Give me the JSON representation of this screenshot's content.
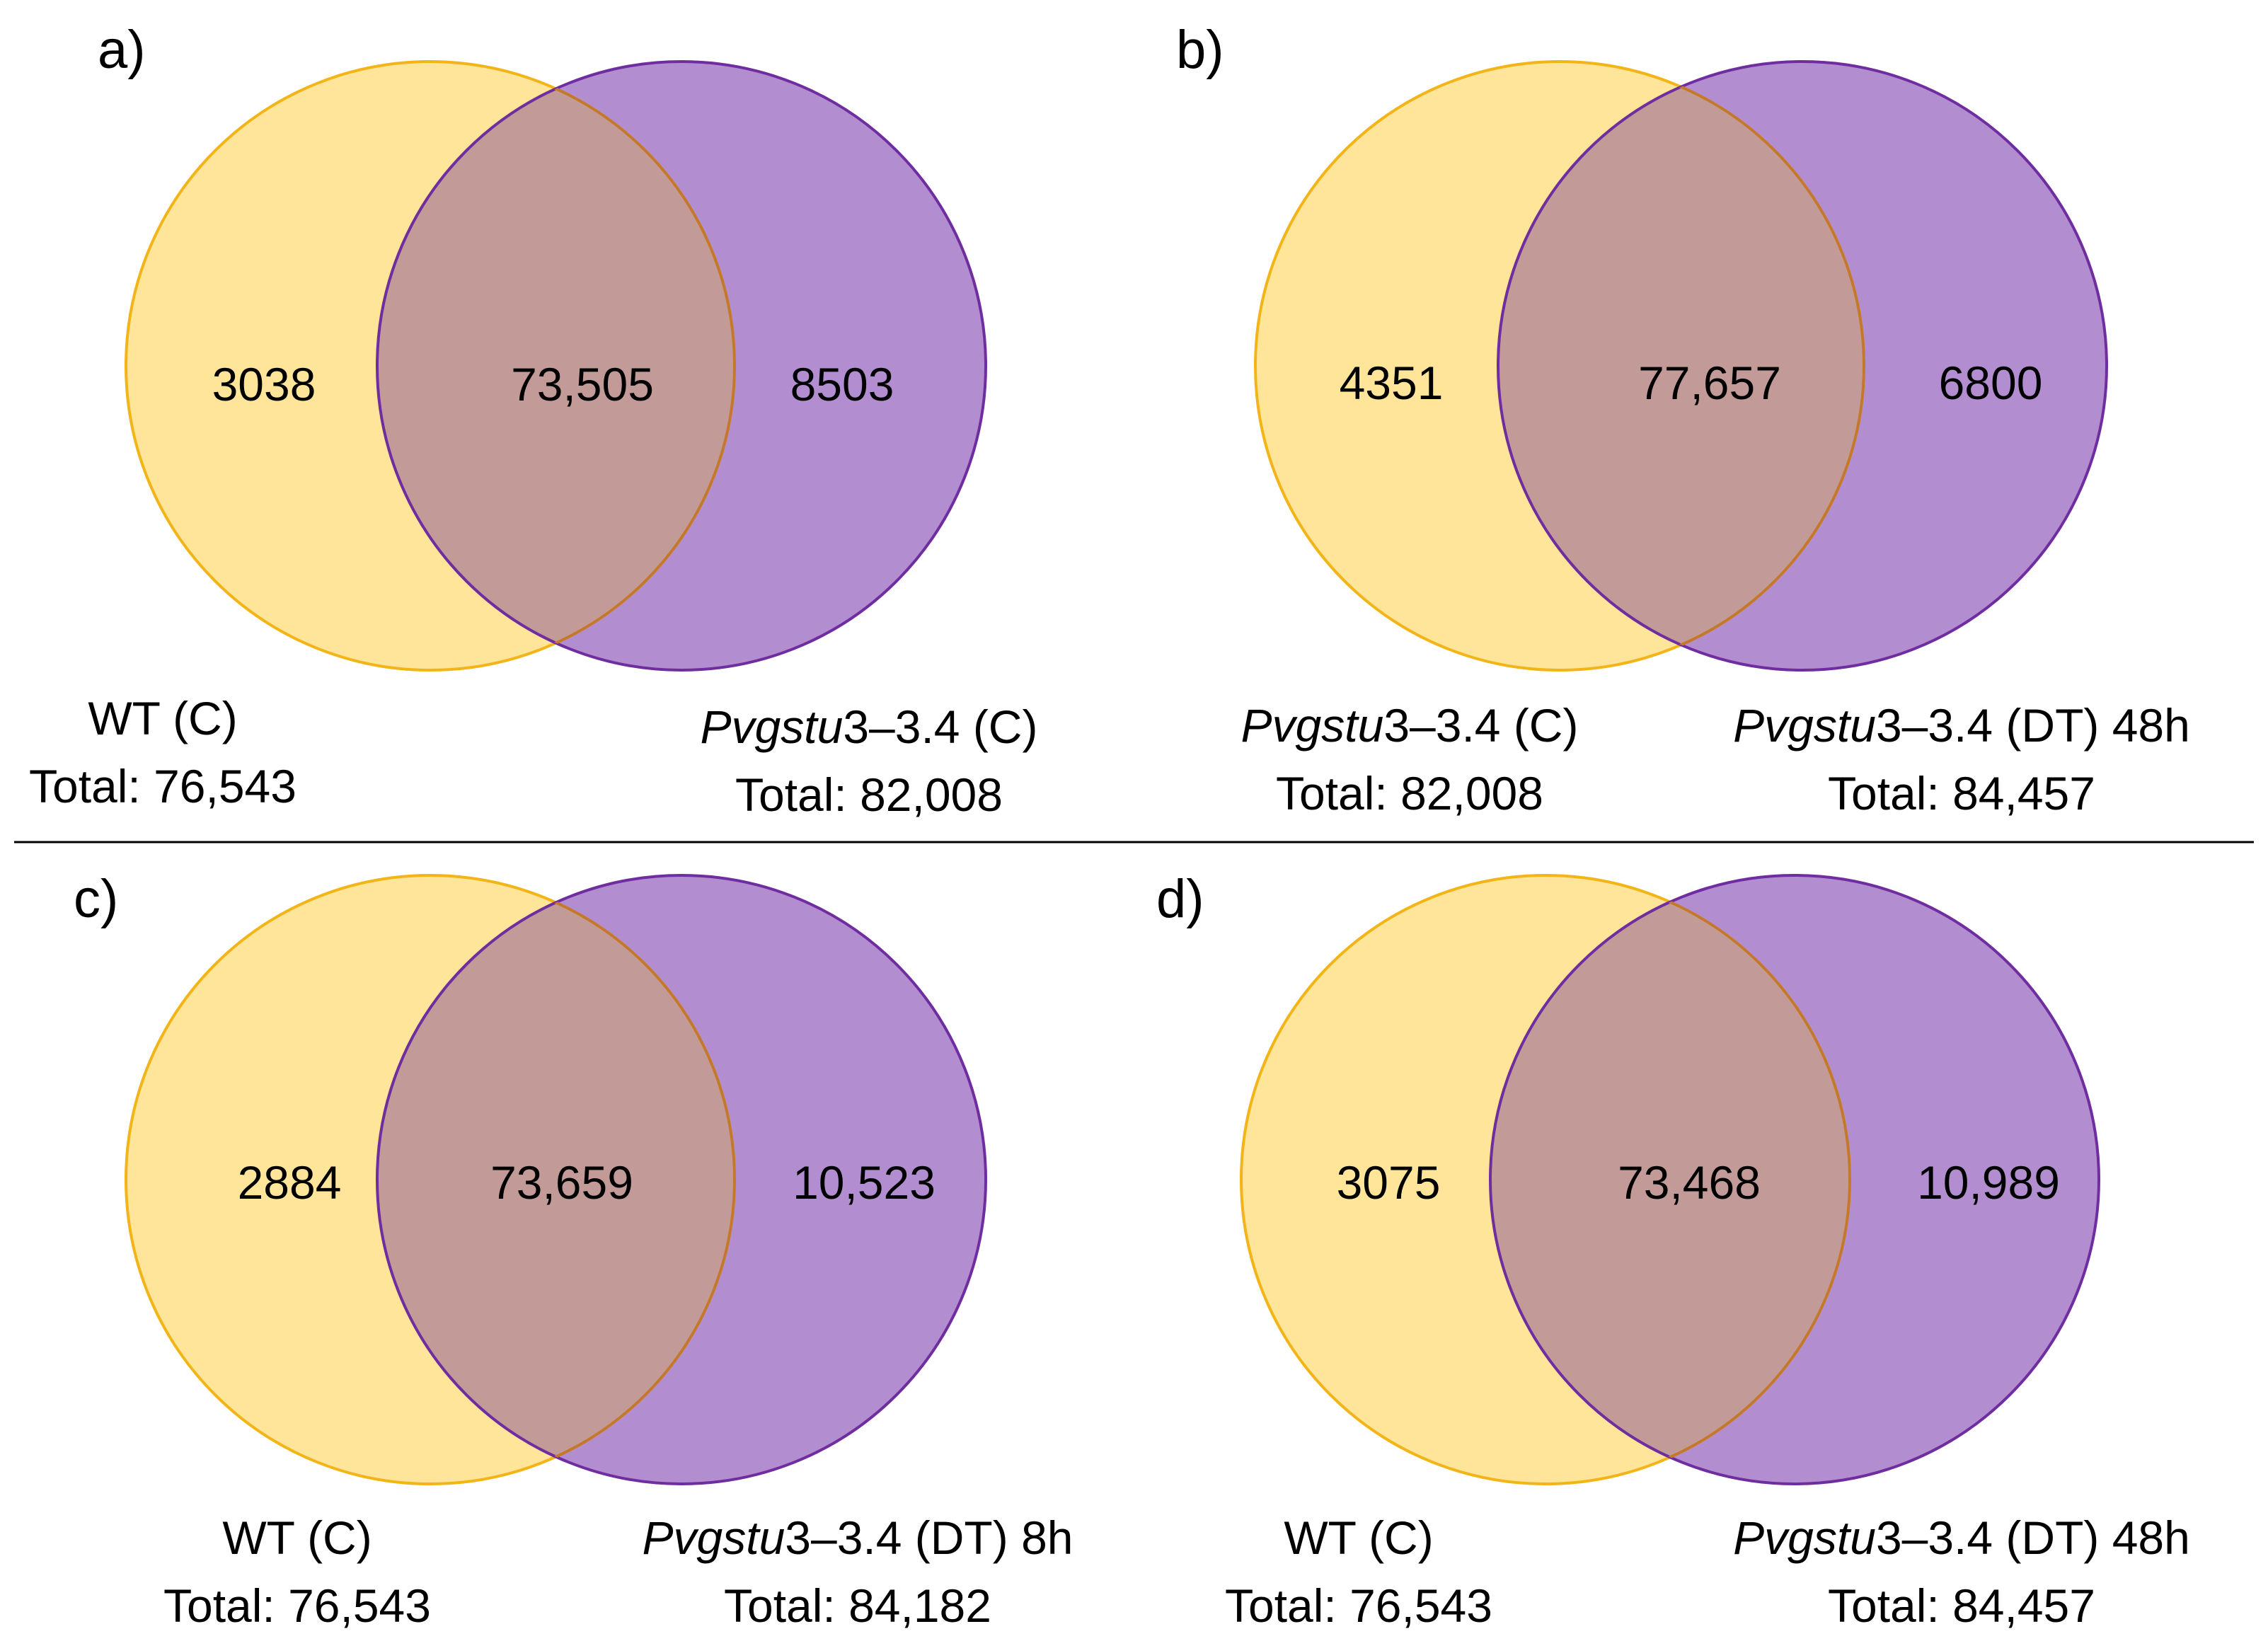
{
  "colors": {
    "left_fill": "#FFE599",
    "left_stroke": "#F2B417",
    "right_fill": "#B28ED0",
    "right_stroke": "#6F2DA0",
    "overlap_fill": "#C29B98",
    "overlap_stroke": "#C3782E",
    "divider": "#000000"
  },
  "panels": [
    {
      "label": "a)",
      "left_only": "3038",
      "overlap": "73,505",
      "right_only": "8503",
      "left_set": {
        "prefix": "",
        "italic": "",
        "suffix": "WT (C)",
        "total": "Total: 76,543"
      },
      "right_set": {
        "prefix": "",
        "italic": "Pvgstu",
        "suffix": "3–3.4 (C)",
        "total": "Total: 82,008"
      }
    },
    {
      "label": "b)",
      "left_only": "4351",
      "overlap": "77,657",
      "right_only": "6800",
      "left_set": {
        "prefix": "",
        "italic": "Pvgstu",
        "suffix": "3–3.4 (C)",
        "total": "Total: 82,008"
      },
      "right_set": {
        "prefix": "",
        "italic": "Pvgstu",
        "suffix": "3–3.4 (DT) 48h",
        "total": "Total: 84,457"
      }
    },
    {
      "label": "c)",
      "left_only": "2884",
      "overlap": "73,659",
      "right_only": "10,523",
      "left_set": {
        "prefix": "",
        "italic": "",
        "suffix": "WT (C)",
        "total": "Total: 76,543"
      },
      "right_set": {
        "prefix": "",
        "italic": "Pvgstu",
        "suffix": "3–3.4 (DT) 8h",
        "total": "Total: 84,182"
      }
    },
    {
      "label": "d)",
      "left_only": "3075",
      "overlap": "73,468",
      "right_only": "10,989",
      "left_set": {
        "prefix": "",
        "italic": "",
        "suffix": "WT (C)",
        "total": "Total: 76,543"
      },
      "right_set": {
        "prefix": "",
        "italic": "Pvgstu",
        "suffix": "3–3.4 (DT) 48h",
        "total": "Total: 84,457"
      }
    }
  ]
}
